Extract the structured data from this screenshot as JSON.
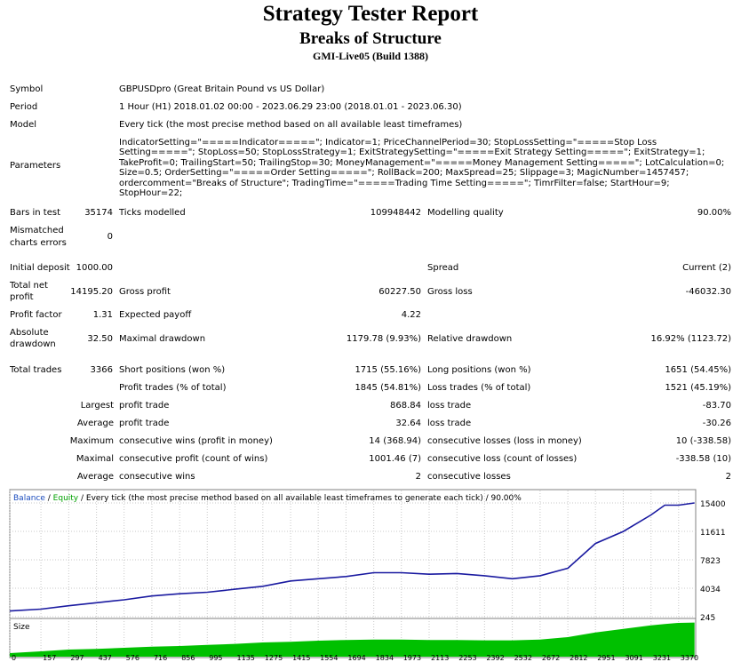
{
  "header": {
    "title": "Strategy Tester Report",
    "subtitle": "Breaks of Structure",
    "build": "GMI-Live05 (Build 1388)"
  },
  "info": {
    "symbol_label": "Symbol",
    "symbol_value": "GBPUSDpro (Great Britain Pound vs US Dollar)",
    "period_label": "Period",
    "period_value": "1 Hour (H1) 2018.01.02 00:00 - 2023.06.29 23:00 (2018.01.01 - 2023.06.30)",
    "model_label": "Model",
    "model_value": "Every tick (the most precise method based on all available least timeframes)",
    "parameters_label": "Parameters",
    "parameters_value": "IndicatorSetting=\"=====Indicator=====\"; Indicator=1; PriceChannelPeriod=30; StopLossSetting=\"=====Stop Loss Setting=====\"; StopLoss=50; StopLossStrategy=1; ExitStrategySetting=\"=====Exit Strategy Setting=====\"; ExitStrategy=1; TakeProfit=0; TrailingStart=50; TrailingStop=30; MoneyManagement=\"=====Money Management Setting=====\"; LotCalculation=0; Size=0.5; OrderSetting=\"=====Order Setting=====\"; RollBack=200; MaxSpread=25; Slippage=3; MagicNumber=1457457; ordercomment=\"Breaks of Structure\"; TradingTime=\"=====Trading Time Setting=====\"; TimrFilter=false; StartHour=9; StopHour=22;"
  },
  "stats": {
    "bars_label": "Bars in test",
    "bars_value": "35174",
    "ticks_label": "Ticks modelled",
    "ticks_value": "109948442",
    "quality_label": "Modelling quality",
    "quality_value": "90.00%",
    "mismatch_label_1": "Mismatched",
    "mismatch_label_2": "charts errors",
    "mismatch_value": "0",
    "deposit_label": "Initial deposit",
    "deposit_value": "1000.00",
    "spread_label": "Spread",
    "spread_value": "Current (2)",
    "net_label_1": "Total net",
    "net_label_2": "profit",
    "net_value": "14195.20",
    "gross_profit_label": "Gross profit",
    "gross_profit_value": "60227.50",
    "gross_loss_label": "Gross loss",
    "gross_loss_value": "-46032.30",
    "pf_label": "Profit factor",
    "pf_value": "1.31",
    "ep_label": "Expected payoff",
    "ep_value": "4.22",
    "abs_dd_label_1": "Absolute",
    "abs_dd_label_2": "drawdown",
    "abs_dd_value": "32.50",
    "max_dd_label": "Maximal drawdown",
    "max_dd_value": "1179.78 (9.93%)",
    "rel_dd_label": "Relative drawdown",
    "rel_dd_value": "16.92% (1123.72)",
    "trades_label": "Total trades",
    "trades_value": "3366",
    "short_label": "Short positions (won %)",
    "short_value": "1715 (55.16%)",
    "long_label": "Long positions (won %)",
    "long_value": "1651 (54.45%)",
    "pt_label": "Profit trades (% of total)",
    "pt_value": "1845 (54.81%)",
    "lt_label": "Loss trades (% of total)",
    "lt_value": "1521 (45.19%)",
    "largest_label": "Largest",
    "largest_pt_label": "profit trade",
    "largest_pt_value": "868.84",
    "largest_lt_label": "loss trade",
    "largest_lt_value": "-83.70",
    "average_label": "Average",
    "avg_pt_label": "profit trade",
    "avg_pt_value": "32.64",
    "avg_lt_label": "loss trade",
    "avg_lt_value": "-30.26",
    "maximum_label": "Maximum",
    "max_cw_label": "consecutive wins (profit in money)",
    "max_cw_value": "14 (368.94)",
    "max_cl_label": "consecutive losses (loss in money)",
    "max_cl_value": "10 (-338.58)",
    "maximal_label": "Maximal",
    "mxl_cp_label": "consecutive profit (count of wins)",
    "mxl_cp_value": "1001.46 (7)",
    "mxl_cl_label": "consecutive loss (count of losses)",
    "mxl_cl_value": "-338.58 (10)",
    "average2_label": "Average",
    "avg_cw_label": "consecutive wins",
    "avg_cw_value": "2",
    "avg_cl_label": "consecutive losses",
    "avg_cl_value": "2"
  },
  "colors": {
    "balance": "#1a1aa0",
    "equity": "#00a000",
    "size_fill": "#00c000",
    "label_blue": "#1a4cbe",
    "grid": "#c8c8c8"
  },
  "chart_data": {
    "type": "line",
    "legend": {
      "balance": "Balance",
      "slash1": " / ",
      "equity": "Equity",
      "rest": " / Every tick (the most precise method based on all available least timeframes to generate each tick) / 90.00%"
    },
    "size_label": "Size",
    "y_ticks": [
      "15400",
      "11611",
      "7823",
      "4034",
      "245"
    ],
    "ylim": [
      245,
      15400
    ],
    "x_ticks": [
      "0",
      "157",
      "297",
      "437",
      "576",
      "716",
      "856",
      "995",
      "1135",
      "1275",
      "1415",
      "1554",
      "1694",
      "1834",
      "1973",
      "2113",
      "2253",
      "2392",
      "2532",
      "2672",
      "2812",
      "2951",
      "3091",
      "3231",
      "3370"
    ],
    "xlim": [
      0,
      3456
    ],
    "series": [],
    "balance_x": [
      0,
      157,
      297,
      437,
      576,
      716,
      856,
      995,
      1135,
      1275,
      1415,
      1554,
      1694,
      1834,
      1973,
      2113,
      2253,
      2392,
      2532,
      2672,
      2812,
      2951,
      3091,
      3231,
      3300,
      3370,
      3450
    ],
    "balance_y": [
      1000,
      1250,
      1700,
      2100,
      2500,
      3000,
      3300,
      3500,
      3900,
      4300,
      5000,
      5300,
      5600,
      6100,
      6100,
      5900,
      6000,
      5700,
      5300,
      5700,
      6700,
      10000,
      11600,
      13800,
      15100,
      15100,
      15400
    ],
    "size_y": [
      0.1,
      0.15,
      0.2,
      0.22,
      0.25,
      0.28,
      0.3,
      0.33,
      0.36,
      0.4,
      0.42,
      0.45,
      0.47,
      0.48,
      0.48,
      0.47,
      0.47,
      0.46,
      0.46,
      0.48,
      0.55,
      0.68,
      0.78,
      0.88,
      0.92,
      0.95,
      0.96
    ]
  }
}
